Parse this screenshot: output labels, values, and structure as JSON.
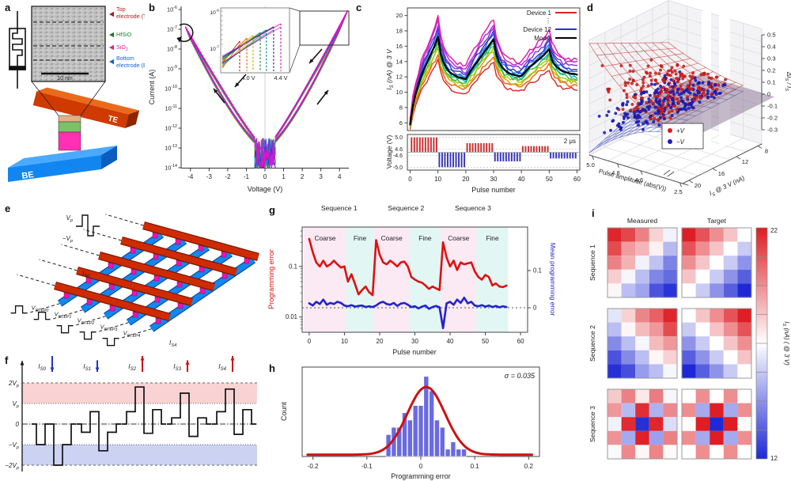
{
  "panel_labels": {
    "a": "a",
    "b": "b",
    "c": "c",
    "d": "d",
    "e": "e",
    "f": "f",
    "g": "g",
    "h": "h",
    "i": "i"
  },
  "a": {
    "tem_labels": [
      {
        "lines": [
          "Top",
          "electrode (TE)"
        ],
        "color": "#b51a1a"
      },
      {
        "lines": [
          "HfSiO"
        ],
        "color": "#1a7e2e"
      },
      {
        "lines": [
          "SiO_{2}"
        ],
        "color": "#e0218a"
      },
      {
        "lines": [
          "Bottom",
          "electrode (BE)"
        ],
        "color": "#1560d4"
      }
    ],
    "scale_bar": "10 nm",
    "te": "TE",
    "be": "BE"
  },
  "e": {
    "pulse_labels": [
      "V_{p}",
      "−V_{p}"
    ],
    "output_top": "I_{S0}",
    "steps": [
      "V_{STEP0}",
      "V_{STEP1}",
      "V_{STEP2}",
      "V_{STEP3}",
      "V_{STEP4}"
    ],
    "output_bottom": "I_{S4}"
  },
  "f": {
    "levels": [
      "2V_{p}",
      "V_{p}",
      "0",
      "−V_{p}",
      "−2V_{p}"
    ],
    "pulses": [
      {
        "label": "I_{S0}",
        "dir": "down",
        "size": 1
      },
      {
        "label": "I_{S1}",
        "dir": "down",
        "size": 0.7
      },
      {
        "label": "I_{S2}",
        "dir": "up",
        "size": 1
      },
      {
        "label": "I_{S3}",
        "dir": "up",
        "size": 0.7
      },
      {
        "label": "I_{S4}",
        "dir": "up",
        "size": 1
      }
    ],
    "waveforms": [
      [
        -1,
        0,
        -2,
        -1
      ],
      [
        -0.4,
        0.6,
        -1.3,
        -0.4
      ],
      [
        0.6,
        1.8,
        -0.45,
        0.7
      ],
      [
        0.3,
        1.5,
        -0.6,
        0.3
      ],
      [
        0.6,
        1.7,
        -0.5,
        0.7
      ]
    ],
    "up_color": "#cc1111",
    "down_color": "#2233cc",
    "band_pos_color": "#f9d2d4",
    "band_neg_color": "#ccd2f2"
  },
  "chart_data": {
    "b": {
      "type": "line",
      "xlabel": "Voltage (V)",
      "ylabel": "Current (A)",
      "x_ticks": [
        -4,
        -3,
        -2,
        -1,
        0,
        1,
        2,
        3,
        4
      ],
      "y_tick_exponents": [
        -6,
        -7,
        -8,
        -9,
        -10,
        -11,
        -12,
        -13,
        -14
      ],
      "curve_colors": [
        "#cc2a2a",
        "#e06a10",
        "#d0a800",
        "#93c400",
        "#2fae38",
        "#00b59c",
        "#0096d6",
        "#2b6fe0",
        "#2633cc",
        "#7a2fd4",
        "#c11fd2",
        "#e316c2"
      ],
      "curve_vmax": [
        4.0,
        4.04,
        4.08,
        4.12,
        4.16,
        4.2,
        4.24,
        4.28,
        4.32,
        4.36,
        4.4,
        4.43
      ],
      "inset": {
        "y_ticks": [
          "10^{-6}",
          "10^{-7}"
        ],
        "x_ticks": [
          "4.0 V",
          "4.4 V"
        ],
        "dash_colors": [
          "#b22222",
          "#e07000",
          "#ccaa00",
          "#2e8b2e",
          "#008b8b",
          "#26269c",
          "#cc22aa"
        ],
        "dash_x": [
          4.0,
          4.07,
          4.13,
          4.2,
          4.26,
          4.33,
          4.4
        ]
      }
    },
    "c": {
      "type": "line",
      "ylabel": "I_{S} (nA) @ 3 V",
      "xlabel": "Pulse number",
      "x_ticks": [
        0,
        10,
        20,
        30,
        40,
        50,
        60
      ],
      "y_ticks": [
        6,
        8,
        10,
        12,
        14,
        16,
        18,
        20
      ],
      "legend": [
        {
          "label": "Device 1",
          "color": "#d62728"
        },
        {
          "label": "⋮",
          "color": ""
        },
        {
          "label": "Device 12",
          "color": "#2633cc"
        },
        {
          "label": "Model",
          "color": "#000000"
        }
      ],
      "model": [
        5.8,
        8.2,
        9.8,
        11.0,
        12.1,
        13.0,
        13.8,
        14.6,
        15.4,
        16.2,
        17.2,
        15.0,
        13.9,
        13.2,
        12.7,
        12.4,
        12.2,
        12.0,
        11.9,
        11.8,
        11.7,
        12.3,
        12.9,
        13.4,
        13.9,
        14.4,
        14.9,
        15.4,
        15.9,
        16.4,
        16.9,
        14.9,
        13.9,
        13.3,
        12.9,
        12.6,
        12.4,
        12.3,
        12.2,
        12.1,
        12.1,
        12.5,
        12.9,
        13.3,
        13.6,
        13.9,
        14.2,
        14.5,
        14.8,
        15.2,
        15.6,
        14.2,
        13.6,
        13.2,
        12.9,
        12.7,
        12.6,
        12.5,
        12.4,
        12.4,
        12.3
      ],
      "device_colors": [
        "#d62728",
        "#e8600a",
        "#d4a400",
        "#9acd00",
        "#35b44a",
        "#00b59c",
        "#00a3d0",
        "#2b6fe0",
        "#2633cc",
        "#7a2fd4",
        "#b51fd2",
        "#e316a8"
      ],
      "device_offsets": [
        -2.9,
        -2.1,
        -1.5,
        -1.1,
        -0.7,
        -0.3,
        0.2,
        0.6,
        1.0,
        1.5,
        2.1,
        2.7
      ],
      "noise_seed": 11,
      "voltage_strip": {
        "ylabel": "Voltage (V)",
        "y_tick_labels": [
          "5.0",
          "4.6",
          "-4.6",
          "-5.0"
        ],
        "annotation": "2 μs",
        "pos_color": "#cc3333",
        "neg_color": "#3a3ab8",
        "groups": [
          {
            "start": 0,
            "end": 10,
            "amp": 5.0
          },
          {
            "start": 10,
            "end": 20,
            "amp": -5.0
          },
          {
            "start": 20,
            "end": 30,
            "amp": 4.8
          },
          {
            "start": 30,
            "end": 40,
            "amp": -4.8
          },
          {
            "start": 40,
            "end": 50,
            "amp": 4.7
          },
          {
            "start": 50,
            "end": 60,
            "amp": -4.7
          }
        ]
      }
    },
    "d": {
      "type": "scatter3d",
      "zlabel": "ΔI_{S} / I_{S}",
      "z_ticks": [
        "0.5",
        "0.4",
        "0.3",
        "0.2",
        "0.1",
        "0",
        "-0.1",
        "-0.2",
        "-0.3"
      ],
      "x_axis": {
        "label": "Pulse amplitude (abs(V))",
        "ticks": [
          "5.0",
          "4.8",
          "4.6",
          "2.5"
        ]
      },
      "y_axis": {
        "label": "I_{S} @ 3 V (nA)",
        "ticks": [
          "20",
          "16",
          "12",
          "8"
        ]
      },
      "legend": [
        {
          "label": "+V",
          "color": "#d81f1f"
        },
        {
          "label": "−V",
          "color": "#1b1bd0"
        }
      ],
      "surface_pos_peak": 0.5,
      "surface_neg_peak": -0.38,
      "n_points": 210,
      "seed": 7
    },
    "g": {
      "type": "line-dual-axis",
      "xlabel": "Pulse number",
      "x_ticks": [
        0,
        10,
        20,
        30,
        40,
        50,
        60
      ],
      "left_axis": {
        "label": "Programming error",
        "color": "#dd1111",
        "ticks": [
          "0.1",
          "0.01"
        ]
      },
      "right_axis": {
        "label": "Mean programming error",
        "color": "#2222cc",
        "ticks": [
          "0.1",
          "0"
        ]
      },
      "sequence_labels": [
        "Sequence 1",
        "Sequence 2",
        "Sequence 3"
      ],
      "regions": [
        {
          "label": "Coarse",
          "start": -1.5,
          "end": 10.5,
          "fill": "#fbe9f3"
        },
        {
          "label": "Fine",
          "start": 10.5,
          "end": 18.3,
          "fill": "#e2f6f4"
        },
        {
          "label": "Coarse",
          "start": 18.3,
          "end": 28.5,
          "fill": "#fbe9f3"
        },
        {
          "label": "Fine",
          "start": 28.5,
          "end": 37.3,
          "fill": "#e2f6f4"
        },
        {
          "label": "Coarse",
          "start": 37.3,
          "end": 47.5,
          "fill": "#fbe9f3"
        },
        {
          "label": "Fine",
          "start": 47.5,
          "end": 56.5,
          "fill": "#e2f6f4"
        }
      ],
      "red_values": [
        0.35,
        0.19,
        0.12,
        0.1,
        0.13,
        0.1,
        0.11,
        0.13,
        0.11,
        0.095,
        0.1,
        0.05,
        0.07,
        0.045,
        0.028,
        0.034,
        0.04,
        0.031,
        0.027,
        0.33,
        0.17,
        0.12,
        0.11,
        0.13,
        0.115,
        0.1,
        0.12,
        0.125,
        0.1,
        0.062,
        0.055,
        0.05,
        0.048,
        0.042,
        0.036,
        0.04,
        0.037,
        0.034,
        0.3,
        0.15,
        0.1,
        0.13,
        0.085,
        0.12,
        0.11,
        0.115,
        0.12,
        0.08,
        0.062,
        0.055,
        0.068,
        0.062,
        0.042,
        0.046,
        0.04,
        0.039,
        0.042
      ],
      "blue_values": [
        0.012,
        0.006,
        0.016,
        0.01,
        0.022,
        0.008,
        0.013,
        0.01,
        0.016,
        0.013,
        0.006,
        0.004,
        0.007,
        0.003,
        0.005,
        0.006,
        0.002,
        0.004,
        0.002,
        0.006,
        0.013,
        0.016,
        0.01,
        0.008,
        0.013,
        0.005,
        0.011,
        0.013,
        0.008,
        0.002,
        0.004,
        -0.002,
        0.003,
        0.006,
        -0.003,
        0.002,
        0.005,
        0.001,
        -0.055,
        0.012,
        0.016,
        0.008,
        0.022,
        0.013,
        0.027,
        0.012,
        0.016,
        0.006,
        0.004,
        0.007,
        0.003,
        0.006,
        0.002,
        0.005,
        0.001,
        0.004,
        0.002
      ]
    },
    "h": {
      "type": "histogram",
      "xlabel": "Programming error",
      "ylabel": "Count",
      "x_ticks": [
        "-0.2",
        "-0.1",
        "0",
        "0.1",
        "0.2"
      ],
      "bar_color": "#6a6ae0",
      "bin_width": 0.01,
      "bin_centers": [
        -0.06,
        -0.05,
        -0.04,
        -0.03,
        -0.02,
        -0.01,
        0,
        0.01,
        0.02,
        0.03,
        0.04,
        0.05,
        0.06,
        0.07,
        0.08
      ],
      "counts": [
        3,
        4,
        4,
        6,
        5,
        7,
        7,
        11,
        9,
        5,
        4,
        1,
        2,
        1,
        1
      ],
      "gauss": {
        "sigma": 0.035,
        "mu": 0.01,
        "amp": 9.3,
        "color": "#cc1111",
        "annotation": "σ = 0.035"
      }
    },
    "i": {
      "type": "heatmap-grid",
      "col_headers": [
        "Measured",
        "Target"
      ],
      "row_labels": [
        "Sequence 1",
        "Sequence 2",
        "Sequence 3"
      ],
      "colorbar": {
        "min": 12,
        "max": 22,
        "label": "I_{S} (nA) ( @ 3 V)",
        "tick_top": "22",
        "tick_bottom": "12"
      },
      "maps": {
        "seq1_measured": [
          [
            21.8,
            21.1,
            19.8,
            18.0,
            16.7
          ],
          [
            21.0,
            19.2,
            18.6,
            17.3,
            15.4
          ],
          [
            19.8,
            18.7,
            16.7,
            15.6,
            14.1
          ],
          [
            18.1,
            16.8,
            15.5,
            14.2,
            13.6
          ],
          [
            17.2,
            15.5,
            14.9,
            13.0,
            12.3
          ]
        ],
        "seq1_target": [
          [
            22,
            20.8,
            19.5,
            18.3,
            17
          ],
          [
            20.8,
            19.5,
            18.3,
            17,
            15.8
          ],
          [
            19.5,
            18.3,
            17,
            15.8,
            14.5
          ],
          [
            18.3,
            17,
            15.8,
            14.5,
            13.3
          ],
          [
            17,
            15.8,
            14.5,
            13.3,
            12
          ]
        ],
        "seq2_measured": [
          [
            16.4,
            18.0,
            19.7,
            20.5,
            21.8
          ],
          [
            15.5,
            17.2,
            18.5,
            19.3,
            21.0
          ],
          [
            14.3,
            15.5,
            16.8,
            18.5,
            19.3
          ],
          [
            13.0,
            14.3,
            15.5,
            17.2,
            18.0
          ],
          [
            12.2,
            12.9,
            14.7,
            15.5,
            16.8
          ]
        ],
        "seq2_target": [
          [
            17,
            18.3,
            19.5,
            20.8,
            22
          ],
          [
            15.8,
            17,
            18.3,
            19.5,
            20.8
          ],
          [
            14.5,
            15.8,
            17,
            18.3,
            19.5
          ],
          [
            13.3,
            14.5,
            15.8,
            17,
            18.3
          ],
          [
            12,
            13.3,
            14.5,
            15.8,
            17
          ]
        ],
        "seq3_measured": [
          [
            18.2,
            19.8,
            17.5,
            19.9,
            16.8
          ],
          [
            19.3,
            15.4,
            21.6,
            15.2,
            19.6
          ],
          [
            16.7,
            21.7,
            12.2,
            21.8,
            16.2
          ],
          [
            19.4,
            15.0,
            21.9,
            14.8,
            19.8
          ],
          [
            16.9,
            19.6,
            17.2,
            19.7,
            17.1
          ]
        ],
        "seq3_target": [
          [
            17,
            19.5,
            17,
            19.5,
            17
          ],
          [
            19.5,
            15,
            22,
            15,
            19.5
          ],
          [
            17,
            22,
            12,
            22,
            17
          ],
          [
            19.5,
            15,
            22,
            15,
            19.5
          ],
          [
            17,
            19.5,
            17,
            19.5,
            17
          ]
        ]
      }
    }
  }
}
